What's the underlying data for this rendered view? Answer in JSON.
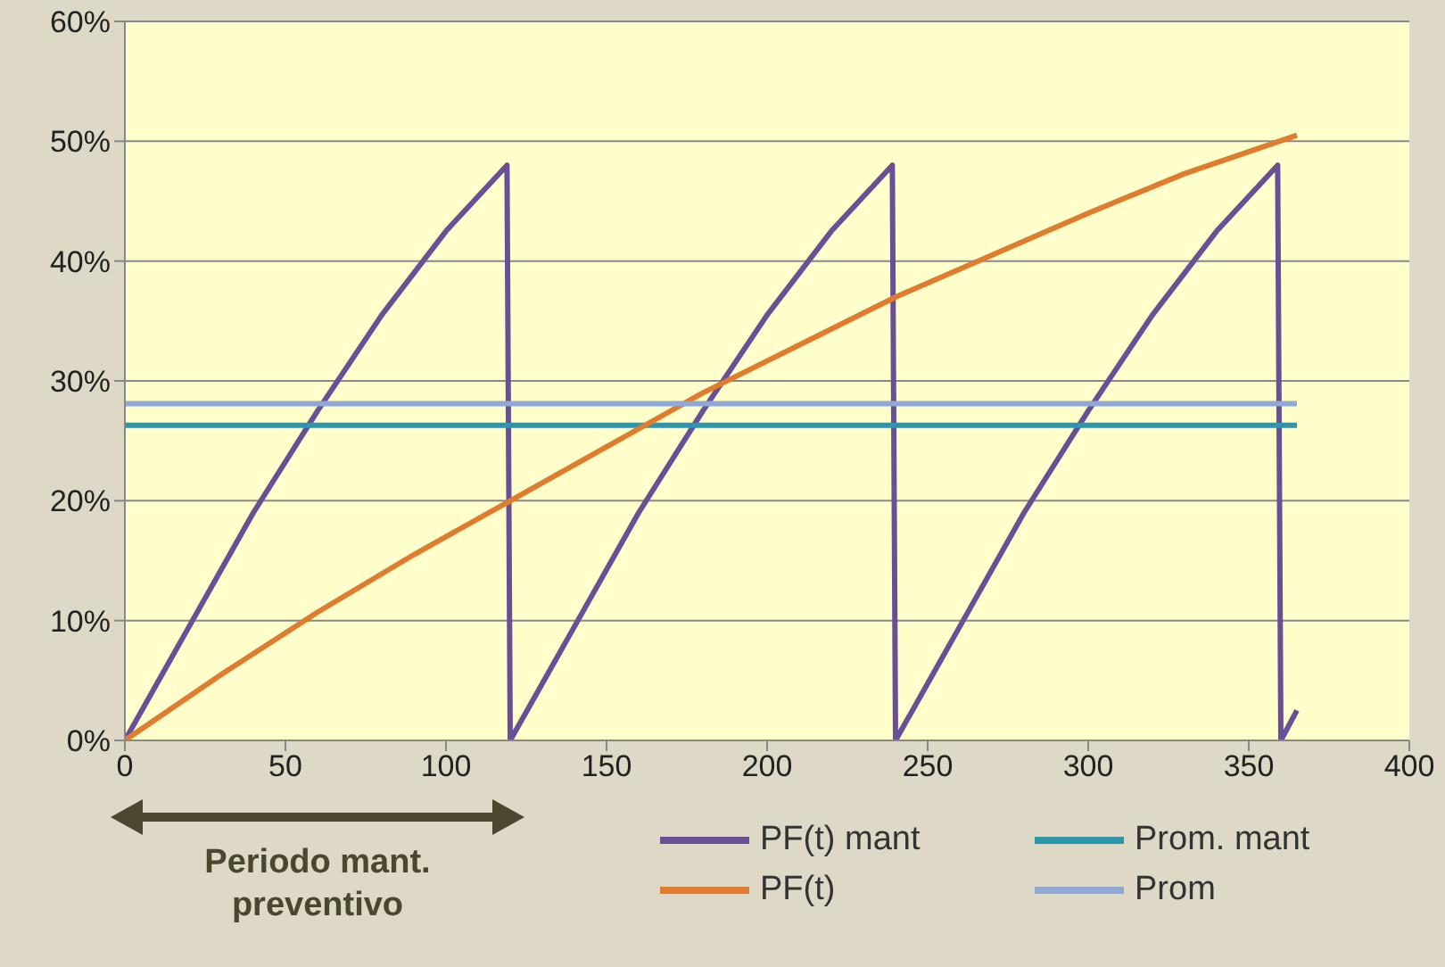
{
  "chart_data": {
    "type": "line",
    "xlim": [
      0,
      400
    ],
    "xticks": [
      0,
      50,
      100,
      150,
      200,
      250,
      300,
      350,
      400
    ],
    "ylim": [
      0,
      60
    ],
    "yticks": [
      {
        "value": 0,
        "label": "0%"
      },
      {
        "value": 10,
        "label": "10%"
      },
      {
        "value": 20,
        "label": "20%"
      },
      {
        "value": 30,
        "label": "30%"
      },
      {
        "value": 40,
        "label": "40%"
      },
      {
        "value": 50,
        "label": "50%"
      },
      {
        "value": 60,
        "label": "60%"
      }
    ],
    "grid": "y",
    "legend": "bottom",
    "marker": "none",
    "line_style": "solid",
    "series": [
      {
        "name": "PF(t) mant",
        "color": "#6a4f96",
        "x": [
          0,
          20,
          40,
          60,
          80,
          100,
          119,
          120,
          140,
          160,
          180,
          200,
          220,
          239,
          240,
          260,
          280,
          300,
          320,
          340,
          359,
          360,
          365
        ],
        "values": [
          0,
          9.5,
          19,
          27.5,
          35.5,
          42.5,
          48,
          0,
          9.5,
          19,
          27.5,
          35.5,
          42.5,
          48,
          0,
          9.5,
          19,
          27.5,
          35.5,
          42.5,
          48,
          0,
          2.5
        ]
      },
      {
        "name": "Prom. mant",
        "color": "#2e95aa",
        "x": [
          0,
          365
        ],
        "values": [
          26.3,
          26.3
        ]
      },
      {
        "name": "PF(t)",
        "color": "#e07c2e",
        "x": [
          0,
          30,
          60,
          90,
          120,
          150,
          180,
          210,
          240,
          270,
          300,
          330,
          365
        ],
        "values": [
          0,
          5.5,
          10.7,
          15.5,
          20,
          24.5,
          29,
          33,
          37,
          40.5,
          44,
          47.3,
          50.5
        ]
      },
      {
        "name": "Prom",
        "color": "#8fa8d4",
        "x": [
          0,
          365
        ],
        "values": [
          28.1,
          28.1
        ]
      }
    ],
    "annotations": [
      "Periodo mant. preventivo"
    ]
  }
}
